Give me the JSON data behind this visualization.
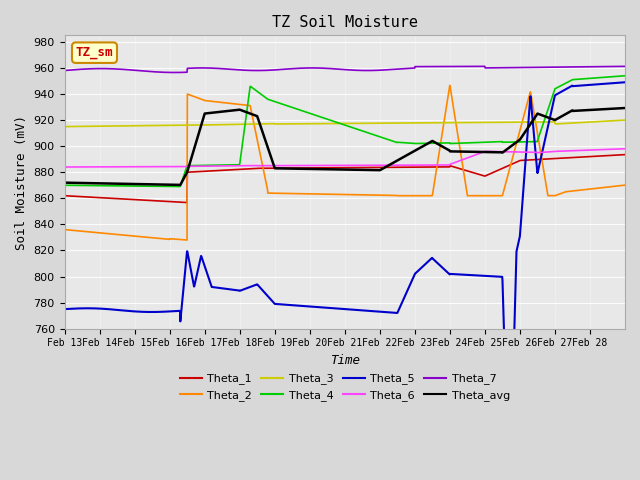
{
  "title": "TZ Soil Moisture",
  "xlabel": "Time",
  "ylabel": "Soil Moisture (mV)",
  "ylim": [
    760,
    985
  ],
  "xlim": [
    0,
    16
  ],
  "x_tick_labels": [
    "Feb 13",
    "Feb 14",
    "Feb 15",
    "Feb 16",
    "Feb 17",
    "Feb 18",
    "Feb 19",
    "Feb 20",
    "Feb 21",
    "Feb 22",
    "Feb 23",
    "Feb 24",
    "Feb 25",
    "Feb 26",
    "Feb 27",
    "Feb 28"
  ],
  "legend_entries": [
    "Theta_1",
    "Theta_2",
    "Theta_3",
    "Theta_4",
    "Theta_5",
    "Theta_6",
    "Theta_7",
    "Theta_avg"
  ],
  "colors": {
    "Theta_1": "#cc0000",
    "Theta_2": "#ff8800",
    "Theta_3": "#cccc00",
    "Theta_4": "#00cc00",
    "Theta_5": "#0000cc",
    "Theta_6": "#ff44ff",
    "Theta_7": "#8800cc",
    "Theta_avg": "#000000"
  },
  "bg_color": "#e8e8e8",
  "plot_bg": "#f0f0f0",
  "annotation_text": "TZ_sm",
  "annotation_color": "#cc0000",
  "annotation_bg": "#ffffcc",
  "annotation_border": "#cc8800"
}
